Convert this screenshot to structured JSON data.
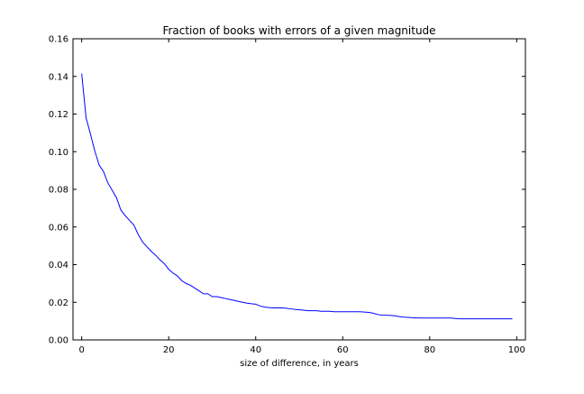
{
  "chart_data": {
    "type": "line",
    "title": "Fraction of books with errors of a given magnitude",
    "xlabel": "size of difference, in years",
    "ylabel": "",
    "xlim": [
      -2,
      102
    ],
    "ylim": [
      0.0,
      0.16
    ],
    "xticks": [
      0,
      20,
      40,
      60,
      80,
      100
    ],
    "yticks": [
      0.0,
      0.02,
      0.04,
      0.06,
      0.08,
      0.1,
      0.12,
      0.14,
      0.16
    ],
    "xtick_labels": [
      "0",
      "20",
      "40",
      "60",
      "80",
      "100"
    ],
    "ytick_labels": [
      "0.00",
      "0.02",
      "0.04",
      "0.06",
      "0.08",
      "0.10",
      "0.12",
      "0.14",
      "0.16"
    ],
    "grid": false,
    "legend": "none",
    "series": [
      {
        "color": "#0000ff",
        "x": [
          0,
          1,
          2,
          3,
          4,
          5,
          6,
          7,
          8,
          9,
          10,
          11,
          12,
          13,
          14,
          15,
          16,
          17,
          18,
          19,
          20,
          21,
          22,
          23,
          24,
          25,
          26,
          27,
          28,
          29,
          30,
          31,
          32,
          33,
          34,
          35,
          36,
          37,
          38,
          39,
          40,
          41,
          42,
          43,
          44,
          45,
          46,
          47,
          48,
          49,
          50,
          51,
          52,
          53,
          54,
          55,
          56,
          57,
          58,
          59,
          60,
          61,
          62,
          63,
          64,
          65,
          66,
          67,
          68,
          69,
          70,
          71,
          72,
          73,
          74,
          75,
          76,
          77,
          78,
          79,
          80,
          81,
          82,
          83,
          84,
          85,
          86,
          87,
          88,
          89,
          90,
          91,
          92,
          93,
          94,
          95,
          96,
          97,
          98,
          99
        ],
        "values": [
          0.1415,
          0.118,
          0.1095,
          0.1005,
          0.093,
          0.0895,
          0.0835,
          0.0795,
          0.0755,
          0.069,
          0.066,
          0.0635,
          0.061,
          0.056,
          0.052,
          0.0495,
          0.047,
          0.045,
          0.0425,
          0.0405,
          0.0375,
          0.0355,
          0.034,
          0.0315,
          0.03,
          0.029,
          0.0275,
          0.026,
          0.0245,
          0.0245,
          0.023,
          0.023,
          0.0225,
          0.022,
          0.0215,
          0.021,
          0.0205,
          0.02,
          0.0195,
          0.0192,
          0.019,
          0.018,
          0.0175,
          0.0172,
          0.017,
          0.017,
          0.017,
          0.0168,
          0.0165,
          0.0162,
          0.016,
          0.0158,
          0.0155,
          0.0155,
          0.0155,
          0.0152,
          0.0152,
          0.0152,
          0.015,
          0.015,
          0.015,
          0.015,
          0.015,
          0.015,
          0.015,
          0.0148,
          0.0146,
          0.0142,
          0.0135,
          0.0132,
          0.0131,
          0.013,
          0.0128,
          0.0124,
          0.0121,
          0.012,
          0.0118,
          0.0117,
          0.0116,
          0.0116,
          0.0116,
          0.0116,
          0.0116,
          0.0116,
          0.0116,
          0.0116,
          0.0113,
          0.0112,
          0.0112,
          0.0112,
          0.0112,
          0.0112,
          0.0112,
          0.0112,
          0.0112,
          0.0112,
          0.0112,
          0.0112,
          0.0112,
          0.0112
        ]
      }
    ]
  }
}
